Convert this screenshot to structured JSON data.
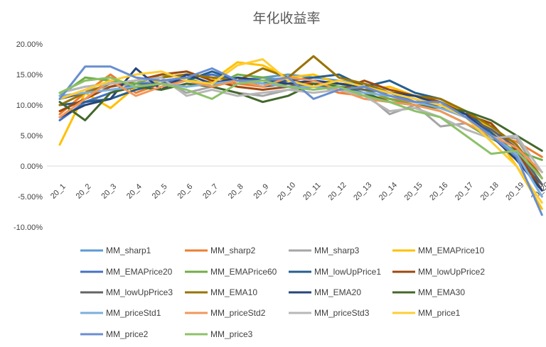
{
  "chart_data": {
    "type": "line",
    "title": "年化收益率",
    "xlabel": "",
    "ylabel": "",
    "ylim": [
      -0.1,
      0.2
    ],
    "yticks": [
      "20.00%",
      "15.00%",
      "10.00%",
      "5.00%",
      "0.00%",
      "-5.00%",
      "-10.00%"
    ],
    "categories": [
      "20_1",
      "20_2",
      "20_3",
      "20_4",
      "20_5",
      "20_6",
      "20_7",
      "20_8",
      "20_9",
      "20_10",
      "20_11",
      "20_12",
      "20_13",
      "20_14",
      "20_15",
      "20_16",
      "20_17",
      "20_18",
      "20_19",
      "20_20"
    ],
    "series": [
      {
        "name": "MM_sharp1",
        "color": "#5B9BD5",
        "values": [
          0.12,
          0.13,
          0.135,
          0.14,
          0.145,
          0.15,
          0.145,
          0.14,
          0.145,
          0.15,
          0.145,
          0.14,
          0.135,
          0.125,
          0.115,
          0.105,
          0.085,
          0.06,
          0.03,
          -0.04
        ]
      },
      {
        "name": "MM_sharp2",
        "color": "#ED7D31",
        "values": [
          0.085,
          0.12,
          0.15,
          0.12,
          0.135,
          0.13,
          0.14,
          0.135,
          0.13,
          0.14,
          0.135,
          0.12,
          0.115,
          0.11,
          0.105,
          0.1,
          0.08,
          0.05,
          0.04,
          0.015
        ]
      },
      {
        "name": "MM_sharp3",
        "color": "#A5A5A5",
        "values": [
          0.11,
          0.125,
          0.13,
          0.135,
          0.14,
          0.12,
          0.13,
          0.12,
          0.115,
          0.125,
          0.13,
          0.13,
          0.12,
          0.085,
          0.1,
          0.065,
          0.07,
          0.05,
          0.045,
          -0.02
        ]
      },
      {
        "name": "MM_EMAPrice10",
        "color": "#FFC000",
        "values": [
          0.035,
          0.12,
          0.095,
          0.13,
          0.14,
          0.13,
          0.14,
          0.17,
          0.165,
          0.145,
          0.15,
          0.135,
          0.125,
          0.13,
          0.115,
          0.105,
          0.09,
          0.06,
          0.0,
          -0.07
        ]
      },
      {
        "name": "MM_EMAPrice20",
        "color": "#4472C4",
        "values": [
          0.075,
          0.105,
          0.12,
          0.135,
          0.135,
          0.145,
          0.15,
          0.14,
          0.135,
          0.145,
          0.14,
          0.135,
          0.13,
          0.12,
          0.105,
          0.1,
          0.085,
          0.055,
          0.02,
          -0.05
        ]
      },
      {
        "name": "MM_EMAPrice60",
        "color": "#70AD47",
        "values": [
          0.115,
          0.145,
          0.14,
          0.135,
          0.15,
          0.145,
          0.13,
          0.15,
          0.145,
          0.14,
          0.13,
          0.135,
          0.125,
          0.11,
          0.1,
          0.09,
          0.07,
          0.045,
          0.025,
          0.01
        ]
      },
      {
        "name": "MM_lowUpPrice1",
        "color": "#255E91",
        "values": [
          0.1,
          0.105,
          0.11,
          0.125,
          0.135,
          0.14,
          0.155,
          0.14,
          0.135,
          0.14,
          0.145,
          0.15,
          0.13,
          0.14,
          0.12,
          0.11,
          0.09,
          0.055,
          0.01,
          -0.03
        ]
      },
      {
        "name": "MM_lowUpPrice2",
        "color": "#9E480E",
        "values": [
          0.09,
          0.11,
          0.13,
          0.14,
          0.15,
          0.155,
          0.14,
          0.13,
          0.125,
          0.13,
          0.135,
          0.125,
          0.14,
          0.125,
          0.115,
          0.105,
          0.085,
          0.07,
          0.025,
          -0.04
        ]
      },
      {
        "name": "MM_lowUpPrice3",
        "color": "#636363",
        "values": [
          0.11,
          0.12,
          0.125,
          0.13,
          0.135,
          0.14,
          0.135,
          0.14,
          0.13,
          0.135,
          0.13,
          0.13,
          0.125,
          0.12,
          0.11,
          0.095,
          0.08,
          0.06,
          0.03,
          -0.03
        ]
      },
      {
        "name": "MM_EMA10",
        "color": "#997300",
        "values": [
          0.1,
          0.12,
          0.135,
          0.14,
          0.145,
          0.15,
          0.145,
          0.14,
          0.16,
          0.145,
          0.18,
          0.145,
          0.135,
          0.12,
          0.115,
          0.11,
          0.09,
          0.065,
          0.035,
          -0.02
        ]
      },
      {
        "name": "MM_EMA20",
        "color": "#264478",
        "values": [
          0.08,
          0.1,
          0.11,
          0.16,
          0.125,
          0.15,
          0.135,
          0.145,
          0.14,
          0.135,
          0.14,
          0.135,
          0.13,
          0.12,
          0.115,
          0.1,
          0.085,
          0.05,
          0.01,
          -0.04
        ]
      },
      {
        "name": "MM_EMA30",
        "color": "#43682B",
        "values": [
          0.105,
          0.075,
          0.12,
          0.13,
          0.125,
          0.135,
          0.13,
          0.12,
          0.105,
          0.115,
          0.135,
          0.13,
          0.12,
          0.105,
          0.1,
          0.095,
          0.09,
          0.075,
          0.05,
          0.025
        ]
      },
      {
        "name": "MM_priceStd1",
        "color": "#7CAFDD",
        "values": [
          0.115,
          0.12,
          0.125,
          0.13,
          0.135,
          0.13,
          0.135,
          0.14,
          0.135,
          0.13,
          0.13,
          0.125,
          0.12,
          0.115,
          0.105,
          0.095,
          0.08,
          0.05,
          0.02,
          -0.05
        ]
      },
      {
        "name": "MM_priceStd2",
        "color": "#F1975A",
        "values": [
          0.08,
          0.11,
          0.14,
          0.115,
          0.13,
          0.14,
          0.13,
          0.14,
          0.13,
          0.145,
          0.14,
          0.125,
          0.11,
          0.105,
          0.1,
          0.09,
          0.07,
          0.05,
          0.03,
          -0.01
        ]
      },
      {
        "name": "MM_priceStd3",
        "color": "#B7B7B7",
        "values": [
          0.12,
          0.13,
          0.135,
          0.14,
          0.145,
          0.115,
          0.125,
          0.115,
          0.12,
          0.125,
          0.12,
          0.125,
          0.115,
          0.09,
          0.095,
          0.08,
          0.06,
          0.045,
          0.05,
          -0.01
        ]
      },
      {
        "name": "MM_price1",
        "color": "#FFCD33",
        "values": [
          0.11,
          0.125,
          0.14,
          0.15,
          0.155,
          0.14,
          0.135,
          0.165,
          0.175,
          0.14,
          0.13,
          0.14,
          0.13,
          0.12,
          0.11,
          0.1,
          0.08,
          0.04,
          0.0,
          -0.06
        ]
      },
      {
        "name": "MM_price2",
        "color": "#698ED0",
        "values": [
          0.11,
          0.163,
          0.163,
          0.145,
          0.14,
          0.145,
          0.16,
          0.14,
          0.14,
          0.145,
          0.11,
          0.125,
          0.13,
          0.115,
          0.105,
          0.105,
          0.08,
          0.05,
          0.015,
          -0.08
        ]
      },
      {
        "name": "MM_price3",
        "color": "#8CC168",
        "values": [
          0.12,
          0.14,
          0.145,
          0.13,
          0.135,
          0.125,
          0.11,
          0.135,
          0.14,
          0.13,
          0.125,
          0.13,
          0.115,
          0.105,
          0.09,
          0.08,
          0.05,
          0.02,
          0.025,
          -0.02
        ]
      }
    ]
  }
}
